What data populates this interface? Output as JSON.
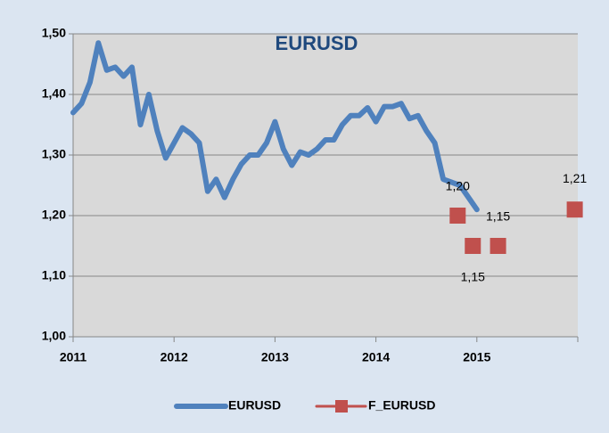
{
  "chart_data": {
    "type": "line",
    "title": "EURUSD",
    "xlim": [
      2011,
      2016
    ],
    "xticks": [
      2011,
      2012,
      2013,
      2014,
      2015
    ],
    "ylim": [
      1.0,
      1.5
    ],
    "yticks": [
      {
        "value": 1.0,
        "label": "1,00"
      },
      {
        "value": 1.1,
        "label": "1,10"
      },
      {
        "value": 1.2,
        "label": "1,20"
      },
      {
        "value": 1.3,
        "label": "1,30"
      },
      {
        "value": 1.4,
        "label": "1,40"
      },
      {
        "value": 1.5,
        "label": "1,50"
      }
    ],
    "grid": true,
    "legend": "bottom",
    "series": [
      {
        "name": "EURUSD",
        "color": "#4f81bd",
        "x": [
          2011,
          2011.083,
          2011.167,
          2011.25,
          2011.333,
          2011.417,
          2011.5,
          2011.583,
          2011.667,
          2011.75,
          2011.833,
          2011.917,
          2012,
          2012.083,
          2012.167,
          2012.25,
          2012.333,
          2012.417,
          2012.5,
          2012.583,
          2012.667,
          2012.75,
          2012.833,
          2012.917,
          2013,
          2013.083,
          2013.167,
          2013.25,
          2013.333,
          2013.417,
          2013.5,
          2013.583,
          2013.667,
          2013.75,
          2013.833,
          2013.917,
          2014,
          2014.083,
          2014.167,
          2014.25,
          2014.333,
          2014.417,
          2014.5,
          2014.583,
          2014.667,
          2014.75,
          2014.833,
          2014.917,
          2015
        ],
        "values": [
          1.37,
          1.385,
          1.42,
          1.485,
          1.44,
          1.445,
          1.43,
          1.445,
          1.35,
          1.4,
          1.34,
          1.295,
          1.32,
          1.345,
          1.335,
          1.32,
          1.24,
          1.26,
          1.23,
          1.26,
          1.285,
          1.3,
          1.3,
          1.32,
          1.355,
          1.31,
          1.283,
          1.305,
          1.3,
          1.31,
          1.325,
          1.325,
          1.35,
          1.365,
          1.365,
          1.378,
          1.355,
          1.38,
          1.38,
          1.385,
          1.36,
          1.365,
          1.34,
          1.32,
          1.26,
          1.255,
          1.25,
          1.23,
          1.21
        ]
      },
      {
        "name": "F_EURUSD",
        "color": "#c0504d",
        "marker": "square",
        "x": [
          2014.81,
          2014.96,
          2015.21,
          2015.97
        ],
        "values": [
          1.2,
          1.15,
          1.15,
          1.21
        ],
        "value_labels": [
          "1,20",
          "1,15",
          "1,15",
          "1,21"
        ]
      }
    ]
  }
}
